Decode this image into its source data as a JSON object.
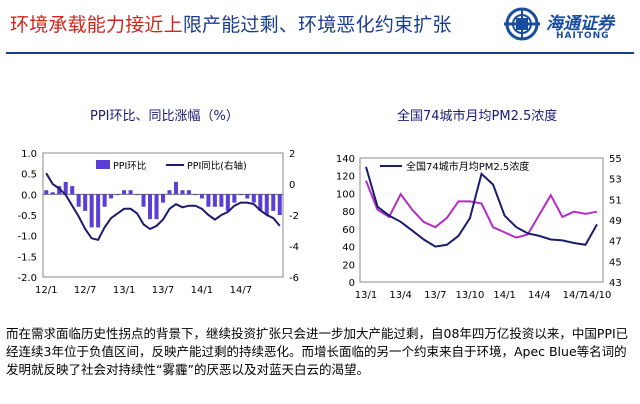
{
  "header": {
    "title_highlight": "环境承载能力接近上",
    "title_rest": "限产能过剩、环境恶化约束扩张",
    "logo_cn": "海通证券",
    "logo_en": "HAITONG"
  },
  "footer": {
    "text": "而在需求面临历史性拐点的背景下，继续投资扩张只会进一步加大产能过剩，自08年四万亿投资以来，中国PPI已经连续3年位于负值区间，反映产能过剩的持续恶化。而增长面临的另一个约束来自于环境，Apec Blue等名词的发明就反映了社会对持续性“雾霾”的厌恶以及对蓝天白云的渴望。"
  },
  "chart_data": [
    {
      "type": "bar+line",
      "title": "PPI环比、同比涨幅（%）",
      "legend": [
        "PPI环比",
        "PPI同比(右轴)"
      ],
      "xlabel": "",
      "ylabel": "",
      "ylim_left": [
        -2.0,
        1.0
      ],
      "ylim_right": [
        -6,
        2
      ],
      "yticks_left": [
        "1.0",
        "0.5",
        "0.0",
        "-0.5",
        "-1.0",
        "-1.5",
        "-2.0"
      ],
      "yticks_right": [
        "2",
        "0",
        "-2",
        "-4",
        "-6"
      ],
      "xticks": [
        "12/1",
        "12/7",
        "13/1",
        "13/7",
        "14/1",
        "14/7"
      ],
      "colors": {
        "bar": "#5a3fd6",
        "line": "#1c1c6e"
      },
      "series": [
        {
          "name": "PPI环比",
          "axis": "left",
          "values": [
            0.1,
            0.05,
            0.2,
            0.3,
            0.2,
            -0.3,
            -0.4,
            -0.8,
            -0.8,
            -0.3,
            -0.1,
            0.0,
            0.1,
            0.1,
            0.0,
            -0.3,
            -0.6,
            -0.6,
            -0.2,
            0.1,
            0.3,
            0.1,
            0.1,
            0.0,
            -0.1,
            -0.3,
            -0.3,
            -0.3,
            -0.4,
            -0.2,
            0.0,
            -0.1,
            -0.2,
            -0.4,
            -0.5,
            -0.4,
            -0.5
          ]
        },
        {
          "name": "PPI同比(右轴)",
          "axis": "right",
          "values": [
            0.7,
            0.0,
            -0.3,
            -0.7,
            -1.4,
            -2.1,
            -2.9,
            -3.5,
            -3.6,
            -2.8,
            -2.2,
            -1.9,
            -1.6,
            -1.6,
            -1.9,
            -2.6,
            -2.9,
            -2.7,
            -2.3,
            -1.6,
            -1.3,
            -1.5,
            -1.4,
            -1.4,
            -1.6,
            -2.0,
            -2.3,
            -2.0,
            -1.8,
            -1.4,
            -1.2,
            -1.2,
            -1.3,
            -1.7,
            -2.0,
            -2.2,
            -2.7
          ]
        }
      ]
    },
    {
      "type": "line",
      "title": "全国74城市月均PM2.5浓度",
      "legend": [
        "全国74城市月均PM2.5浓度"
      ],
      "xlabel": "",
      "ylabel": "",
      "ylim_left": [
        0,
        140
      ],
      "ylim_right": [
        43,
        55
      ],
      "yticks_left": [
        "140",
        "120",
        "100",
        "80",
        "60",
        "40",
        "20",
        "0"
      ],
      "yticks_right": [
        "55",
        "53",
        "51",
        "49",
        "47",
        "45",
        "43"
      ],
      "xticks": [
        "13/1",
        "13/4",
        "13/7",
        "13/10",
        "14/1",
        "14/4",
        "14/7",
        "14/10"
      ],
      "colors": {
        "left_series": "#1c1c6e",
        "right_series": "#b52ec4"
      },
      "series": [
        {
          "name": "全国74城市月均PM2.5浓度",
          "axis": "left",
          "values": [
            130,
            85,
            75,
            68,
            58,
            48,
            40,
            42,
            52,
            72,
            122,
            110,
            75,
            62,
            55,
            52,
            48,
            47,
            44,
            42,
            65
          ]
        },
        {
          "name": "magenta series (right axis)",
          "axis": "right",
          "values": [
            52.8,
            50.0,
            49.3,
            51.5,
            50.0,
            48.8,
            48.3,
            49.2,
            50.8,
            50.8,
            50.6,
            48.3,
            47.8,
            47.3,
            47.6,
            49.5,
            51.4,
            49.3,
            49.8,
            49.6,
            49.8
          ]
        }
      ]
    }
  ]
}
